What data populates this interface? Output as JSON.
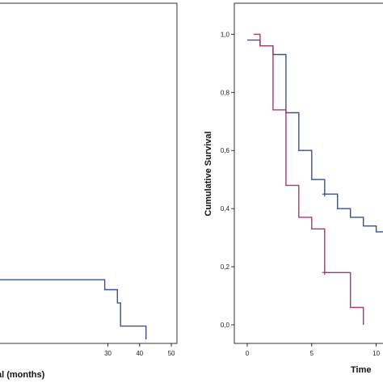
{
  "chart_data": [
    {
      "type": "line",
      "subtype": "kaplan-meier",
      "panel": "left",
      "xlabel": "al (months)",
      "ylabel": "",
      "x_ticks": [
        "30",
        "40",
        "50"
      ],
      "xlim": [
        -4,
        51
      ],
      "ylim": [
        0,
        1
      ],
      "series": [
        {
          "color": "#3a4f9a",
          "steps": [
            {
              "x": -4,
              "y": 0.18
            },
            {
              "x": 29,
              "y": 0.18
            },
            {
              "x": 29,
              "y": 0.15
            },
            {
              "x": 33,
              "y": 0.15
            },
            {
              "x": 33,
              "y": 0.11
            },
            {
              "x": 34,
              "y": 0.11
            },
            {
              "x": 34,
              "y": 0.04
            },
            {
              "x": 42,
              "y": 0.04
            },
            {
              "x": 42,
              "y": 0.0
            }
          ]
        }
      ]
    },
    {
      "type": "line",
      "subtype": "kaplan-meier",
      "panel": "right",
      "title": "",
      "xlabel": "Time",
      "ylabel": "Cumulative Survival",
      "x_ticks": [
        "0",
        "5",
        "10"
      ],
      "y_ticks": [
        "0,0",
        "0,2",
        "0,4",
        "0,6",
        "0,8",
        "1,0"
      ],
      "xlim": [
        -1,
        10.9
      ],
      "ylim": [
        -0.05,
        1.09
      ],
      "series": [
        {
          "color": "#3a4f9a",
          "steps": [
            {
              "x": 0,
              "y": 0.98
            },
            {
              "x": 1,
              "y": 0.98
            },
            {
              "x": 1,
              "y": 0.96
            },
            {
              "x": 2,
              "y": 0.96
            },
            {
              "x": 2,
              "y": 0.93
            },
            {
              "x": 3,
              "y": 0.93
            },
            {
              "x": 3,
              "y": 0.73
            },
            {
              "x": 4,
              "y": 0.73
            },
            {
              "x": 4,
              "y": 0.6
            },
            {
              "x": 5,
              "y": 0.6
            },
            {
              "x": 5,
              "y": 0.5
            },
            {
              "x": 6,
              "y": 0.5
            },
            {
              "x": 6,
              "y": 0.45
            },
            {
              "x": 7,
              "y": 0.45
            },
            {
              "x": 7,
              "y": 0.4
            },
            {
              "x": 8,
              "y": 0.4
            },
            {
              "x": 8,
              "y": 0.37
            },
            {
              "x": 9,
              "y": 0.37
            },
            {
              "x": 9,
              "y": 0.34
            },
            {
              "x": 10,
              "y": 0.34
            },
            {
              "x": 10,
              "y": 0.32
            },
            {
              "x": 10.9,
              "y": 0.32
            }
          ],
          "censored": [
            {
              "x": 6,
              "y": 0.45
            }
          ]
        },
        {
          "color": "#b0357a",
          "steps": [
            {
              "x": 0.5,
              "y": 1.0
            },
            {
              "x": 1,
              "y": 1.0
            },
            {
              "x": 1,
              "y": 0.96
            },
            {
              "x": 2,
              "y": 0.96
            },
            {
              "x": 2,
              "y": 0.74
            },
            {
              "x": 3,
              "y": 0.74
            },
            {
              "x": 3,
              "y": 0.48
            },
            {
              "x": 4,
              "y": 0.48
            },
            {
              "x": 4,
              "y": 0.37
            },
            {
              "x": 5,
              "y": 0.37
            },
            {
              "x": 5,
              "y": 0.33
            },
            {
              "x": 6,
              "y": 0.33
            },
            {
              "x": 6,
              "y": 0.18
            },
            {
              "x": 8,
              "y": 0.18
            },
            {
              "x": 8,
              "y": 0.06
            },
            {
              "x": 9,
              "y": 0.06
            },
            {
              "x": 9,
              "y": 0.0
            }
          ],
          "censored": [
            {
              "x": 6,
              "y": 0.18
            }
          ]
        }
      ]
    }
  ]
}
